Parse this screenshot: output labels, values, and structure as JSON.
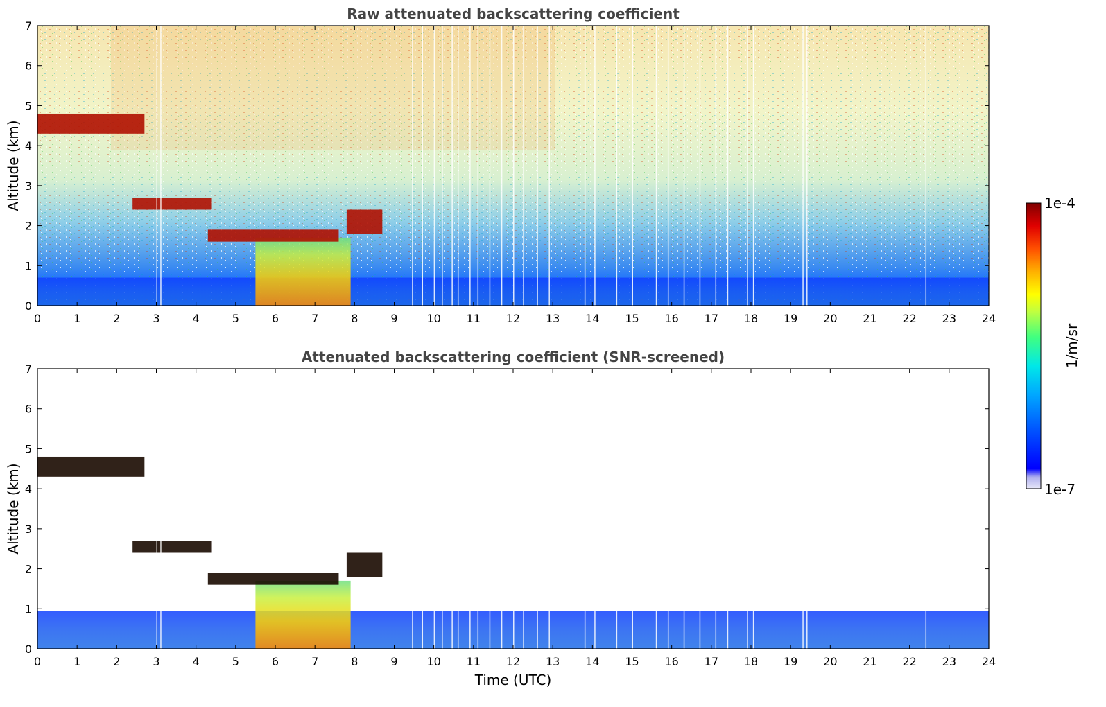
{
  "chart_data": [
    {
      "type": "heatmap",
      "title": "Raw attenuated backscattering coefficient",
      "xlabel": "",
      "ylabel": "Altitude (km)",
      "xlim": [
        0,
        24
      ],
      "ylim": [
        0,
        7
      ],
      "xticks": [
        "0",
        "1",
        "2",
        "3",
        "4",
        "5",
        "6",
        "7",
        "8",
        "9",
        "10",
        "11",
        "12",
        "13",
        "14",
        "15",
        "16",
        "17",
        "18",
        "19",
        "20",
        "21",
        "22",
        "23",
        "24"
      ],
      "yticks": [
        "0",
        "1",
        "2",
        "3",
        "4",
        "5",
        "6",
        "7"
      ],
      "layers": [
        {
          "x": [
            0,
            2.7
          ],
          "y": [
            4.3,
            4.8
          ],
          "level": "high"
        },
        {
          "x": [
            2.4,
            4.4
          ],
          "y": [
            2.4,
            2.7
          ],
          "level": "high"
        },
        {
          "x": [
            4.3,
            7.6
          ],
          "y": [
            1.6,
            1.9
          ],
          "level": "high"
        },
        {
          "x": [
            7.8,
            8.7
          ],
          "y": [
            1.8,
            2.4
          ],
          "level": "high"
        },
        {
          "x": [
            5.5,
            7.9
          ],
          "y": [
            0.0,
            1.7
          ],
          "level": "medium"
        },
        {
          "x": [
            0,
            24
          ],
          "y": [
            0.0,
            0.7
          ],
          "level": "low"
        }
      ]
    },
    {
      "type": "heatmap",
      "title": "Attenuated backscattering coefficient (SNR-screened)",
      "xlabel": "Time (UTC)",
      "ylabel": "Altitude (km)",
      "xlim": [
        0,
        24
      ],
      "ylim": [
        0,
        7
      ],
      "xticks": [
        "0",
        "1",
        "2",
        "3",
        "4",
        "5",
        "6",
        "7",
        "8",
        "9",
        "10",
        "11",
        "12",
        "13",
        "14",
        "15",
        "16",
        "17",
        "18",
        "19",
        "20",
        "21",
        "22",
        "23",
        "24"
      ],
      "yticks": [
        "0",
        "1",
        "2",
        "3",
        "4",
        "5",
        "6",
        "7"
      ],
      "layers": [
        {
          "x": [
            0,
            2.7
          ],
          "y": [
            4.3,
            4.8
          ],
          "level": "high"
        },
        {
          "x": [
            2.4,
            4.4
          ],
          "y": [
            2.4,
            2.7
          ],
          "level": "high"
        },
        {
          "x": [
            4.3,
            7.6
          ],
          "y": [
            1.6,
            1.9
          ],
          "level": "high"
        },
        {
          "x": [
            7.8,
            8.7
          ],
          "y": [
            1.8,
            2.4
          ],
          "level": "high"
        },
        {
          "x": [
            5.5,
            7.9
          ],
          "y": [
            0.0,
            1.7
          ],
          "level": "medium"
        },
        {
          "x": [
            0,
            24
          ],
          "y": [
            0.0,
            0.95
          ],
          "level": "low"
        }
      ]
    }
  ],
  "colorbar": {
    "max_label": "1e-4",
    "min_label": "1e-7",
    "unit_label": "1/m/sr",
    "scale": "log",
    "colormap": "jet",
    "colors": [
      "#e8e8f8",
      "#b8b8f0",
      "#0000ff",
      "#0060ff",
      "#00b0ff",
      "#00e8e8",
      "#40ff80",
      "#c0ff40",
      "#ffff00",
      "#ffb000",
      "#ff5000",
      "#e00000",
      "#800000"
    ]
  }
}
